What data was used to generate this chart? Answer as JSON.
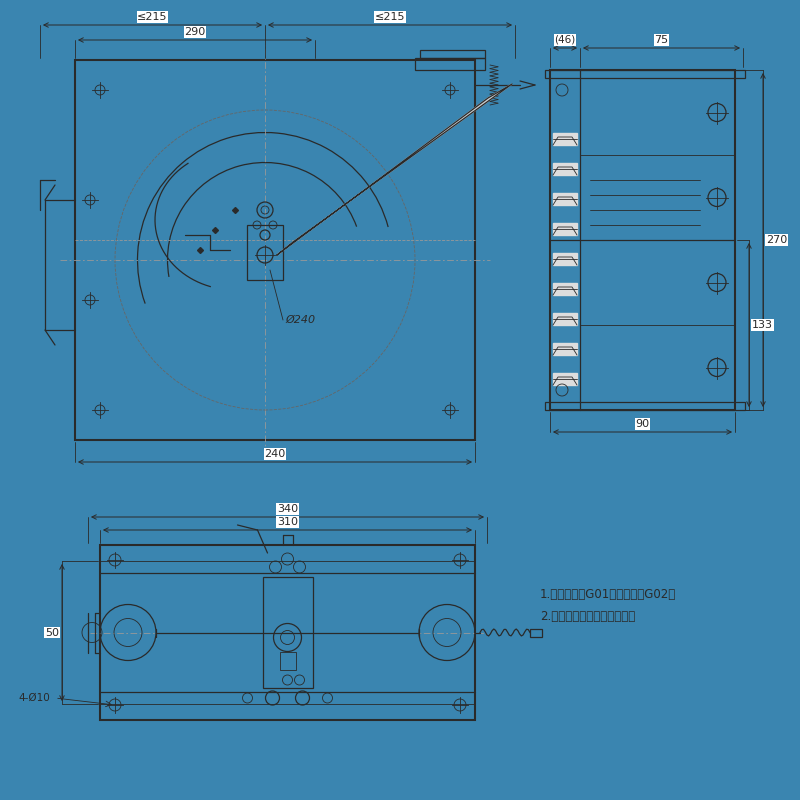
{
  "bg_outer": "#3a85b0",
  "bg_inner": "#ffffff",
  "lc": "#2a2a2a",
  "dc": "#2a2a2a",
  "gray": "#888888",
  "note_line1": "1.标配底座：G01、选配底板G02；",
  "note_line2": "2.超速信号连接至安全回路。",
  "dim_215L": "≤215",
  "dim_215R": "≤215",
  "dim_290": "290",
  "dim_240": "240",
  "dim_phi240": "Ø240",
  "dim_46": "(46)",
  "dim_75": "75",
  "dim_270": "270",
  "dim_133": "133",
  "dim_90": "90",
  "dim_340": "340",
  "dim_310": "310",
  "dim_50": "50",
  "dim_4phi10": "4-Ø10"
}
